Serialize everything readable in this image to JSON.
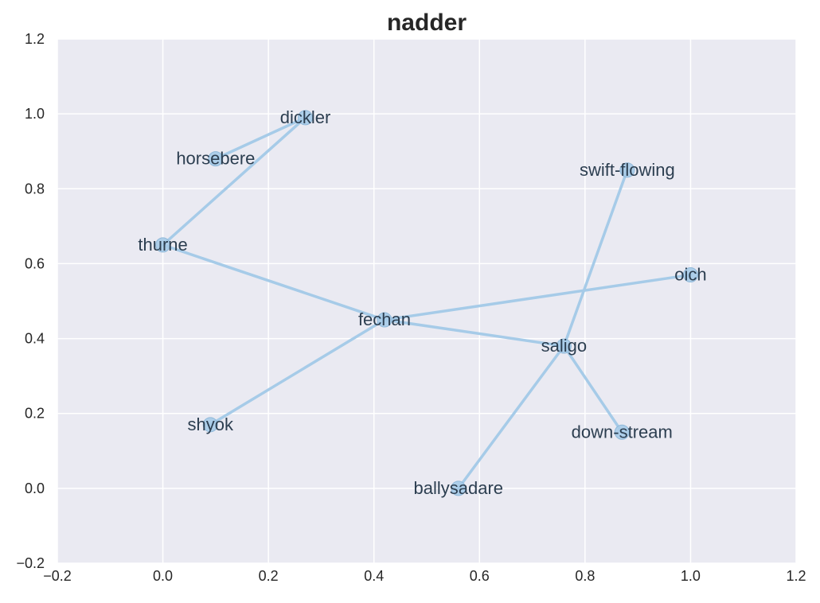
{
  "chart_data": {
    "type": "network",
    "title": "nadder",
    "xlim": [
      -0.2,
      1.2
    ],
    "ylim": [
      -0.2,
      1.2
    ],
    "x_ticks": [
      "-0.2",
      "0.0",
      "0.2",
      "0.4",
      "0.6",
      "0.8",
      "1.0",
      "1.2"
    ],
    "y_ticks": [
      "-0.2",
      "0.0",
      "0.2",
      "0.4",
      "0.6",
      "0.8",
      "1.0",
      "1.2"
    ],
    "grid": true,
    "colors": {
      "plot_background": "#eaeaf2",
      "grid": "#ffffff",
      "edge": "#a6cbe8",
      "node_fill": "#a6cbe8",
      "node_stroke": "#8fb8d9",
      "label": "#2c3e50"
    },
    "nodes": [
      {
        "name": "dickler",
        "x": 0.27,
        "y": 0.99
      },
      {
        "name": "horsebere",
        "x": 0.1,
        "y": 0.88
      },
      {
        "name": "thurne",
        "x": 0.0,
        "y": 0.65
      },
      {
        "name": "swift-flowing",
        "x": 0.88,
        "y": 0.85
      },
      {
        "name": "oich",
        "x": 1.0,
        "y": 0.57
      },
      {
        "name": "fechan",
        "x": 0.42,
        "y": 0.45
      },
      {
        "name": "saligo",
        "x": 0.76,
        "y": 0.38
      },
      {
        "name": "shyok",
        "x": 0.09,
        "y": 0.17
      },
      {
        "name": "down-stream",
        "x": 0.87,
        "y": 0.15
      },
      {
        "name": "ballysadare",
        "x": 0.56,
        "y": 0.0
      }
    ],
    "edges": [
      [
        "horsebere",
        "dickler"
      ],
      [
        "dickler",
        "thurne"
      ],
      [
        "thurne",
        "fechan"
      ],
      [
        "fechan",
        "saligo"
      ],
      [
        "fechan",
        "oich"
      ],
      [
        "fechan",
        "shyok"
      ],
      [
        "saligo",
        "swift-flowing"
      ],
      [
        "saligo",
        "down-stream"
      ],
      [
        "saligo",
        "ballysadare"
      ]
    ]
  }
}
